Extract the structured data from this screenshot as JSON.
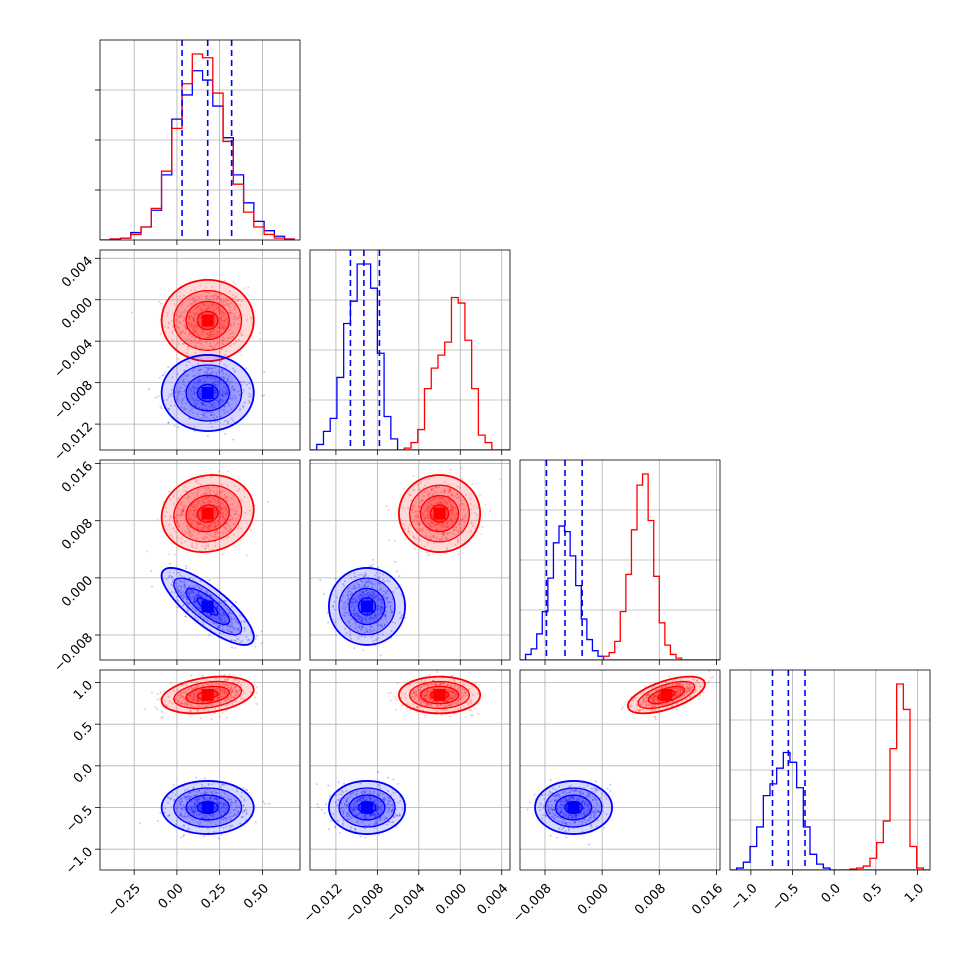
{
  "colors": {
    "series_a": "#ff0000",
    "series_b": "#0000ff",
    "grid": "#b0b0b0",
    "frame": "#000000",
    "quantile_line": "#0000ff"
  },
  "chart_data": {
    "type": "corner",
    "grid": true,
    "n_params": 4,
    "series": [
      {
        "color": "#ff0000",
        "means": [
          0.18,
          -0.002,
          0.009,
          0.85
        ],
        "sds": [
          0.11,
          0.0016,
          0.0022,
          0.09
        ],
        "corr": [
          [
            0,
            1,
            0.0
          ],
          [
            0,
            2,
            0.1
          ],
          [
            0,
            3,
            0.3
          ],
          [
            1,
            2,
            0.0
          ],
          [
            1,
            3,
            0.0
          ],
          [
            2,
            3,
            0.6
          ]
        ]
      },
      {
        "color": "#0000ff",
        "means": [
          0.18,
          -0.009,
          -0.004,
          -0.5
        ],
        "sds": [
          0.11,
          0.0015,
          0.0022,
          0.13
        ],
        "corr": [
          [
            0,
            1,
            0.0
          ],
          [
            0,
            2,
            -0.8
          ],
          [
            0,
            3,
            0.0
          ],
          [
            1,
            2,
            0.0
          ],
          [
            1,
            3,
            0.0
          ],
          [
            2,
            3,
            0.0
          ]
        ],
        "quantiles": [
          [
            0.03,
            0.18,
            0.32
          ],
          [
            -0.0106,
            -0.0093,
            -0.0078
          ],
          [
            -0.0078,
            -0.0052,
            -0.0028
          ],
          [
            -0.74,
            -0.55,
            -0.35
          ]
        ]
      }
    ],
    "axes": [
      {
        "range": [
          -0.45,
          0.72
        ],
        "ticks": [
          -0.25,
          0.0,
          0.25,
          0.5
        ],
        "tick_labels": [
          "−0.25",
          "0.00",
          "0.25",
          "0.50"
        ]
      },
      {
        "range": [
          -0.0145,
          0.0048
        ],
        "ticks": [
          -0.012,
          -0.008,
          -0.004,
          0.0,
          0.004
        ],
        "tick_labels": [
          "−0.012",
          "−0.008",
          "−0.004",
          "0.000",
          "0.004"
        ]
      },
      {
        "range": [
          -0.0115,
          0.0165
        ],
        "ticks": [
          -0.008,
          0.0,
          0.008,
          0.016
        ],
        "tick_labels": [
          "−0.008",
          "0.000",
          "0.008",
          "0.016"
        ]
      },
      {
        "range": [
          -1.25,
          1.15
        ],
        "ticks": [
          -1.0,
          -0.5,
          0.0,
          0.5,
          1.0
        ],
        "tick_labels": [
          "−1.0",
          "−0.5",
          "0.0",
          "0.5",
          "1.0"
        ]
      }
    ],
    "diagonal_histograms": [
      {
        "edges": [
          -0.45,
          -0.39,
          -0.33,
          -0.27,
          -0.21,
          -0.15,
          -0.09,
          -0.03,
          0.03,
          0.09,
          0.15,
          0.21,
          0.27,
          0.33,
          0.39,
          0.45,
          0.51,
          0.57,
          0.63,
          0.69
        ],
        "red": [
          0.0,
          0.005,
          0.01,
          0.03,
          0.07,
          0.17,
          0.37,
          0.6,
          0.84,
          1.0,
          0.98,
          0.79,
          0.53,
          0.3,
          0.15,
          0.07,
          0.03,
          0.01,
          0.005
        ],
        "blue": [
          0.0,
          0.005,
          0.01,
          0.04,
          0.07,
          0.16,
          0.35,
          0.65,
          0.78,
          0.91,
          0.86,
          0.72,
          0.55,
          0.35,
          0.2,
          0.1,
          0.05,
          0.02,
          0.005
        ]
      },
      {
        "edges": [
          -0.0145,
          -0.01385,
          -0.0132,
          -0.01255,
          -0.0119,
          -0.01125,
          -0.0106,
          -0.00995,
          -0.0093,
          -0.00865,
          -0.008,
          -0.00735,
          -0.0067,
          -0.00605,
          -0.0054,
          -0.00475,
          -0.0041,
          -0.00345,
          -0.0028,
          -0.00215,
          -0.0015,
          -0.00085,
          -0.0002,
          0.00045,
          0.0011,
          0.00175,
          0.0024,
          0.00305,
          0.0037,
          0.0048
        ],
        "red": [
          0,
          0,
          0,
          0,
          0,
          0,
          0,
          0,
          0,
          0,
          0,
          0,
          0,
          0,
          0.01,
          0.04,
          0.11,
          0.33,
          0.44,
          0.51,
          0.58,
          0.82,
          0.79,
          0.59,
          0.33,
          0.08,
          0.04,
          0.0,
          0.0
        ],
        "blue": [
          0.0,
          0.03,
          0.1,
          0.17,
          0.39,
          0.68,
          0.8,
          1.0,
          1.0,
          0.87,
          0.52,
          0.18,
          0.06,
          0.0,
          0,
          0,
          0,
          0,
          0,
          0,
          0,
          0,
          0,
          0,
          0,
          0,
          0,
          0,
          0
        ]
      },
      {
        "edges": [
          -0.0115,
          -0.01072,
          -0.00994,
          -0.00916,
          -0.00838,
          -0.0076,
          -0.00682,
          -0.00604,
          -0.00526,
          -0.00448,
          -0.0037,
          -0.00292,
          -0.00214,
          -0.00136,
          -0.00058,
          0.0002,
          0.00098,
          0.00176,
          0.00254,
          0.00332,
          0.0041,
          0.00488,
          0.00566,
          0.00644,
          0.00722,
          0.008,
          0.00878,
          0.00956,
          0.01034,
          0.01112,
          0.0119,
          0.01268,
          0.01346,
          0.01424,
          0.01502,
          0.0165
        ],
        "red": [
          0,
          0,
          0,
          0,
          0,
          0,
          0,
          0,
          0,
          0,
          0,
          0,
          0,
          0,
          0,
          0.02,
          0.04,
          0.1,
          0.26,
          0.46,
          0.7,
          0.94,
          1.0,
          0.75,
          0.45,
          0.2,
          0.08,
          0.03,
          0.01,
          0.0,
          0,
          0,
          0,
          0,
          0
        ],
        "blue": [
          0.0,
          0.03,
          0.06,
          0.14,
          0.26,
          0.44,
          0.63,
          0.72,
          0.69,
          0.56,
          0.4,
          0.22,
          0.11,
          0.05,
          0.02,
          0.0,
          0,
          0,
          0,
          0,
          0,
          0,
          0,
          0,
          0,
          0,
          0,
          0,
          0,
          0,
          0,
          0,
          0,
          0,
          0
        ]
      },
      {
        "edges": [
          -1.25,
          -1.17,
          -1.09,
          -1.01,
          -0.93,
          -0.85,
          -0.77,
          -0.69,
          -0.61,
          -0.53,
          -0.45,
          -0.37,
          -0.29,
          -0.21,
          -0.13,
          -0.05,
          0.03,
          0.11,
          0.19,
          0.27,
          0.35,
          0.43,
          0.51,
          0.59,
          0.67,
          0.75,
          0.83,
          0.91,
          0.99,
          1.07,
          1.15
        ],
        "red": [
          0,
          0,
          0,
          0,
          0,
          0,
          0,
          0,
          0,
          0,
          0,
          0,
          0,
          0,
          0,
          0.0,
          0.0,
          0.0,
          0.005,
          0.01,
          0.02,
          0.06,
          0.14,
          0.25,
          0.62,
          0.95,
          0.82,
          0.12,
          0.01,
          0.0
        ],
        "blue": [
          0.0,
          0.01,
          0.04,
          0.12,
          0.22,
          0.38,
          0.44,
          0.52,
          0.6,
          0.55,
          0.42,
          0.22,
          0.08,
          0.03,
          0.01,
          0.0,
          0,
          0,
          0,
          0,
          0,
          0,
          0,
          0,
          0,
          0,
          0,
          0,
          0,
          0
        ]
      }
    ]
  }
}
